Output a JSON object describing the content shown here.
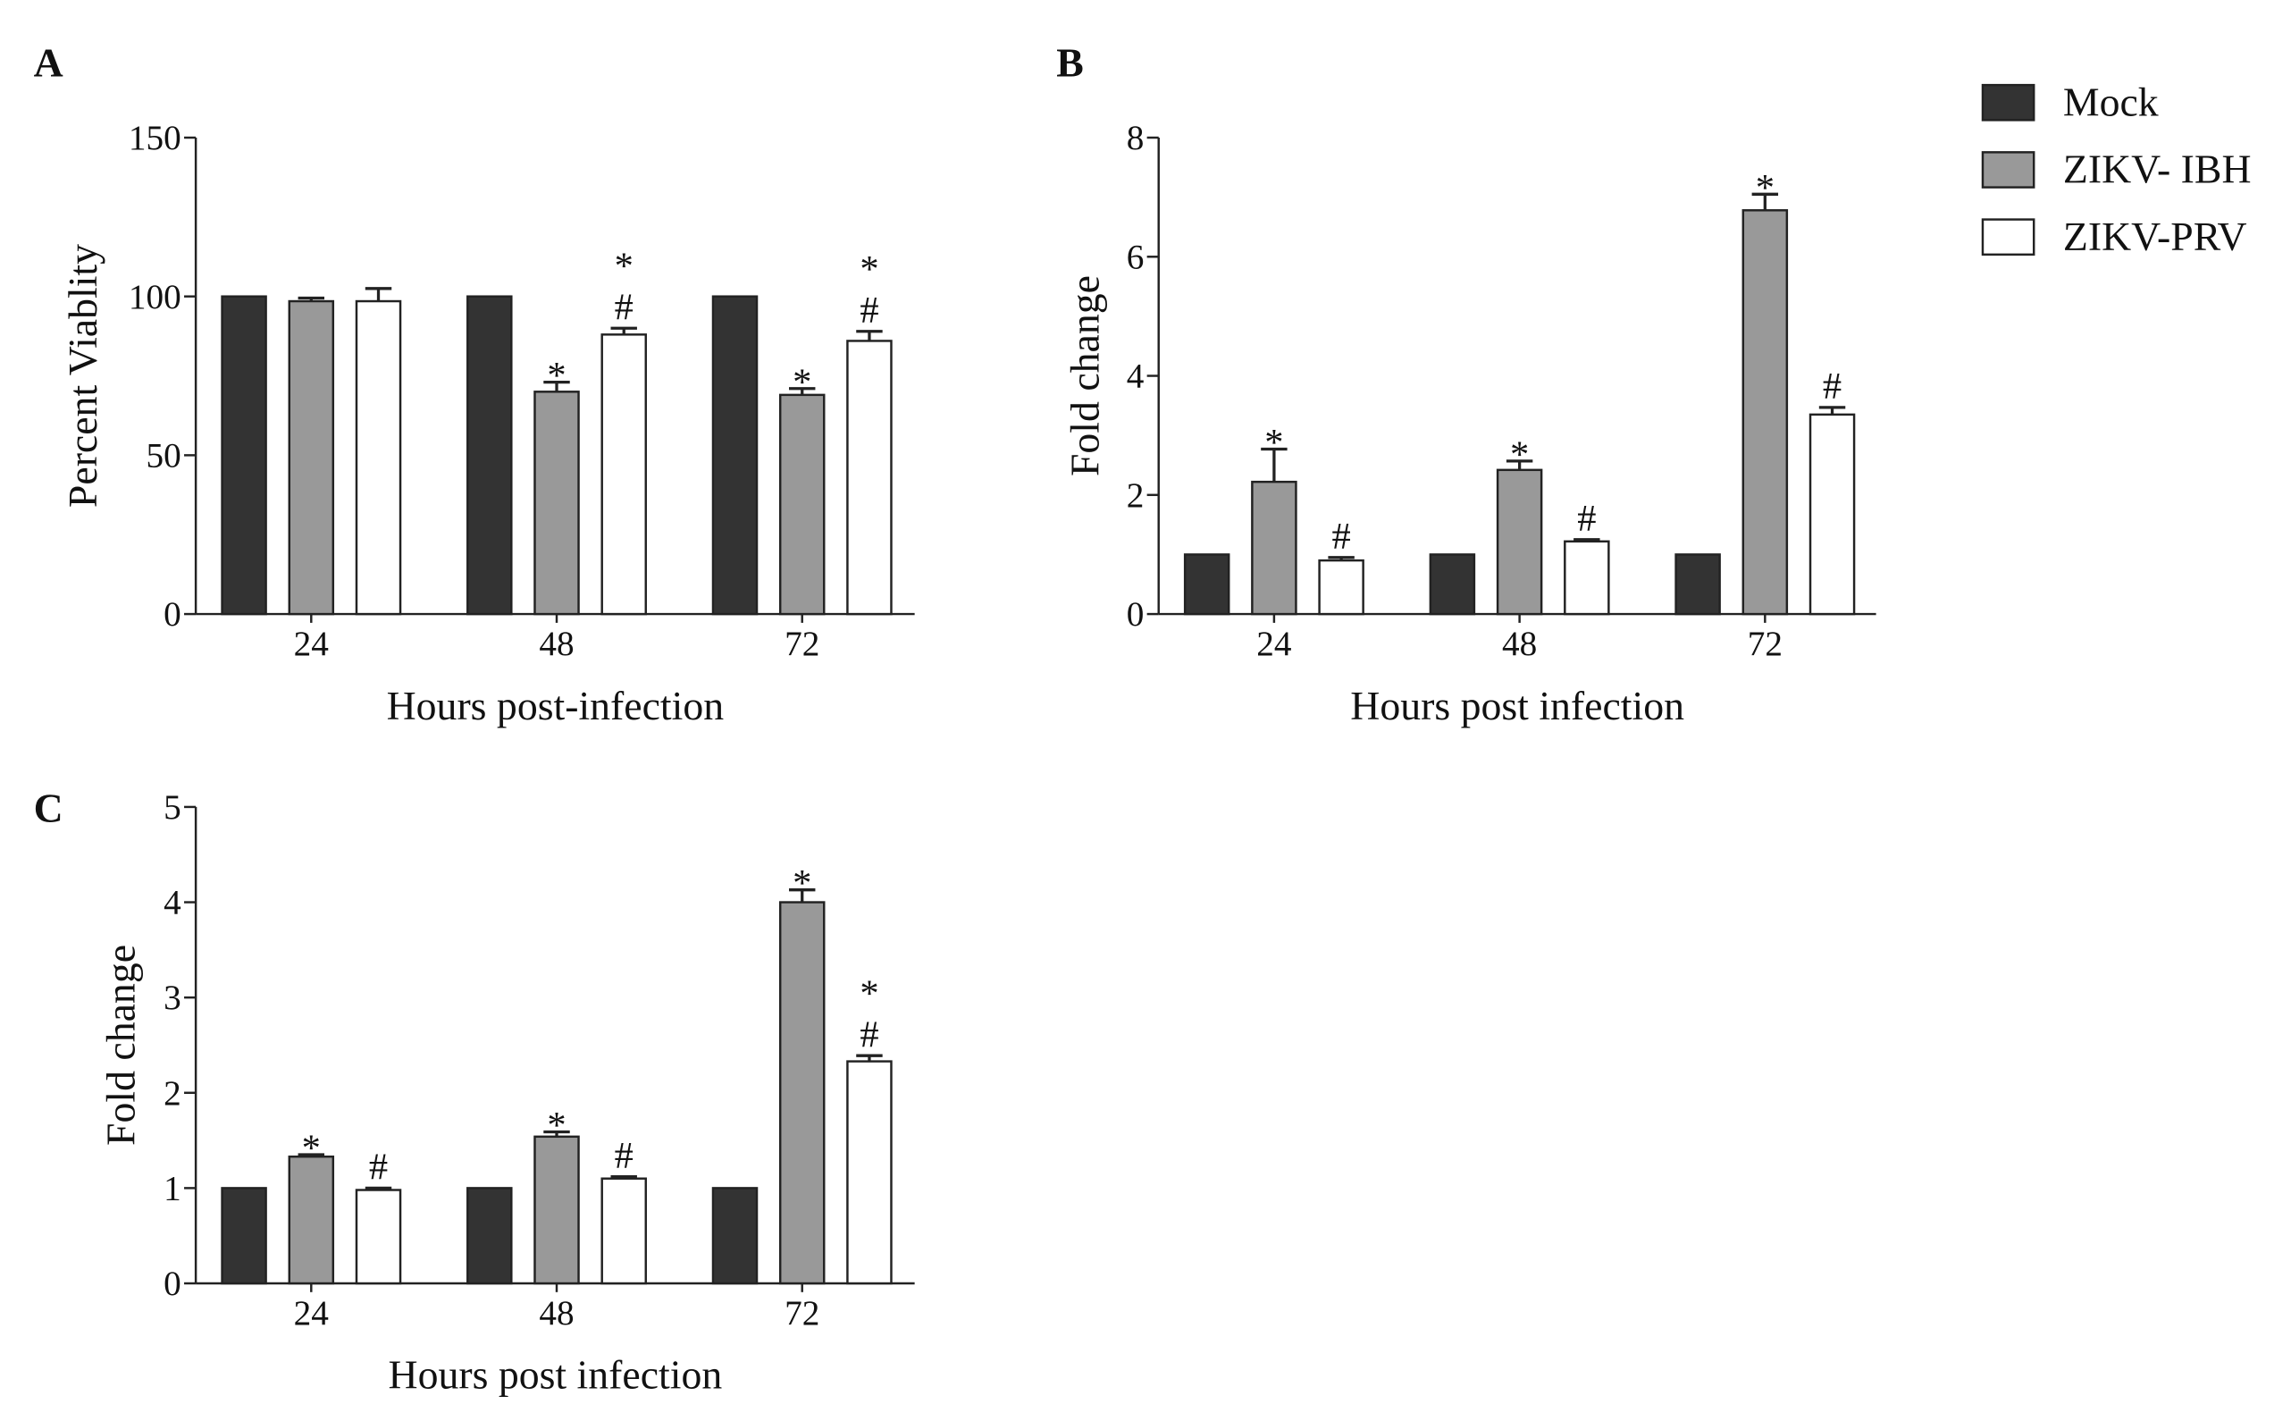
{
  "legend": {
    "items": [
      {
        "label": "Mock",
        "color": "#333333"
      },
      {
        "label": "ZIKV- IBH",
        "color": "#999999"
      },
      {
        "label": "ZIKV-PRV",
        "color": "#ffffff"
      }
    ]
  },
  "chart_data": [
    {
      "panel": "A",
      "type": "bar",
      "title": "",
      "xlabel": "Hours post-infection",
      "ylabel": "Percent Viablity",
      "categories": [
        "24",
        "48",
        "72"
      ],
      "ylim": [
        0,
        150
      ],
      "yticks": [
        0,
        50,
        100,
        150
      ],
      "series": [
        {
          "name": "Mock",
          "values": [
            100,
            100,
            100
          ],
          "errors": [
            0,
            0,
            0
          ],
          "annotations": [
            [],
            [],
            []
          ]
        },
        {
          "name": "ZIKV- IBH",
          "values": [
            98.5,
            70,
            69
          ],
          "errors": [
            1,
            3,
            2
          ],
          "annotations": [
            [],
            [
              "*"
            ],
            [
              "*"
            ]
          ]
        },
        {
          "name": "ZIKV-PRV",
          "values": [
            98.5,
            88,
            86
          ],
          "errors": [
            4,
            2,
            3
          ],
          "annotations": [
            [],
            [
              "#",
              "*"
            ],
            [
              "#",
              "*"
            ]
          ]
        }
      ]
    },
    {
      "panel": "B",
      "type": "bar",
      "title": "",
      "xlabel": "Hours post infection",
      "ylabel": "Fold change",
      "categories": [
        "24",
        "48",
        "72"
      ],
      "ylim": [
        0,
        8
      ],
      "yticks": [
        0,
        2,
        4,
        6,
        8
      ],
      "series": [
        {
          "name": "Mock",
          "values": [
            1,
            1,
            1
          ],
          "errors": [
            0,
            0,
            0
          ],
          "annotations": [
            [],
            [],
            []
          ]
        },
        {
          "name": "ZIKV- IBH",
          "values": [
            2.22,
            2.42,
            6.78
          ],
          "errors": [
            0.55,
            0.15,
            0.27
          ],
          "annotations": [
            [
              "*"
            ],
            [
              "*"
            ],
            [
              "*"
            ]
          ]
        },
        {
          "name": "ZIKV-PRV",
          "values": [
            0.9,
            1.22,
            3.35
          ],
          "errors": [
            0.05,
            0.03,
            0.12
          ],
          "annotations": [
            [
              "#"
            ],
            [
              "#"
            ],
            [
              "#"
            ]
          ]
        }
      ]
    },
    {
      "panel": "C",
      "type": "bar",
      "title": "",
      "xlabel": "Hours post infection",
      "ylabel": "Fold change",
      "categories": [
        "24",
        "48",
        "72"
      ],
      "ylim": [
        0,
        5
      ],
      "yticks": [
        0,
        1,
        2,
        3,
        4,
        5
      ],
      "series": [
        {
          "name": "Mock",
          "values": [
            1,
            1,
            1
          ],
          "errors": [
            0,
            0,
            0
          ],
          "annotations": [
            [],
            [],
            []
          ]
        },
        {
          "name": "ZIKV- IBH",
          "values": [
            1.33,
            1.54,
            4.0
          ],
          "errors": [
            0.02,
            0.05,
            0.13
          ],
          "annotations": [
            [
              "*"
            ],
            [
              "*"
            ],
            [
              "*"
            ]
          ]
        },
        {
          "name": "ZIKV-PRV",
          "values": [
            0.98,
            1.1,
            2.33
          ],
          "errors": [
            0.02,
            0.02,
            0.06
          ],
          "annotations": [
            [
              "#"
            ],
            [
              "#"
            ],
            [
              "#",
              "*"
            ]
          ]
        }
      ]
    }
  ]
}
